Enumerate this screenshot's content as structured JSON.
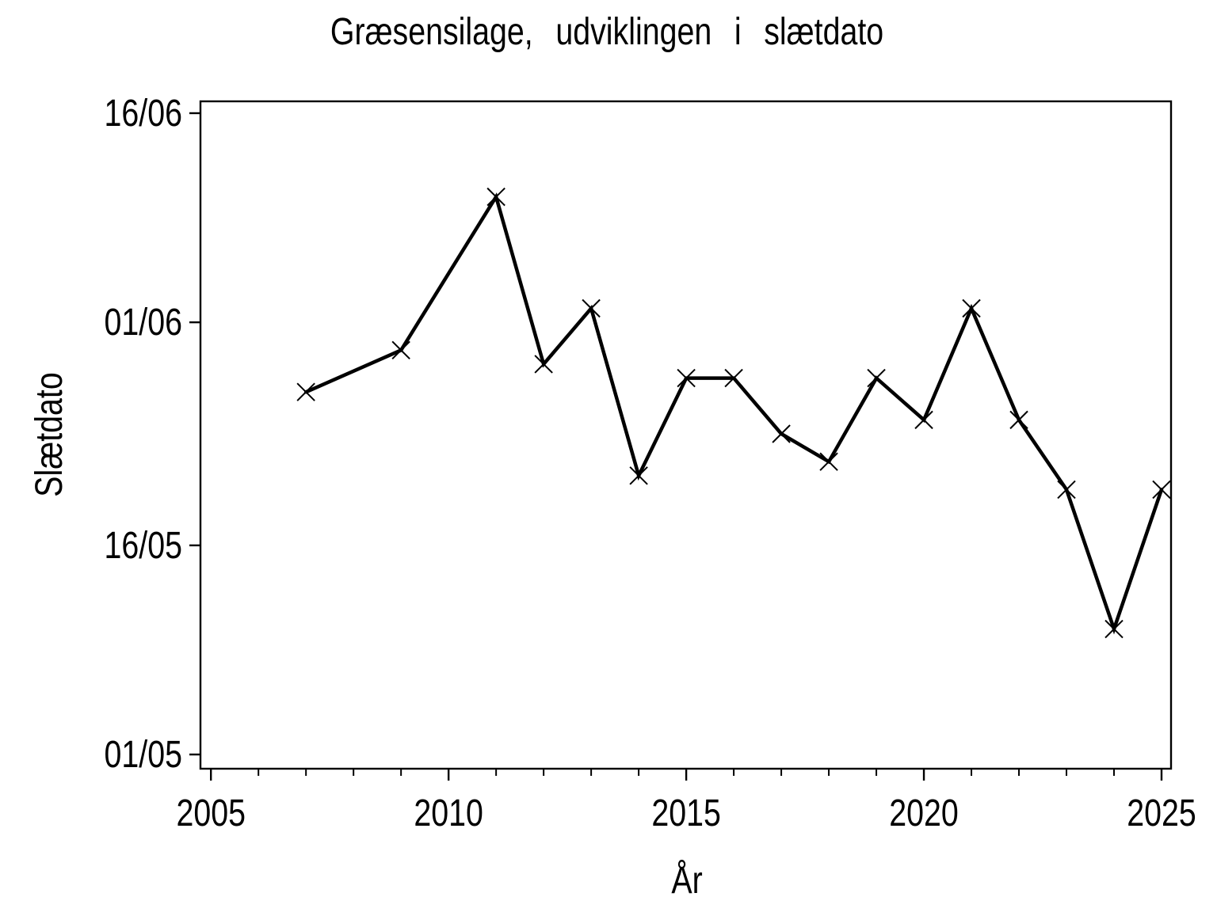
{
  "chart_data": {
    "type": "line",
    "title": "Græsensilage, udviklingen i slætdato",
    "xlabel": "År",
    "ylabel": "Slætdato",
    "legend": "none",
    "grid": false,
    "colors": {
      "foreground": "#000000",
      "background": "#ffffff"
    },
    "x_axis": {
      "lim": [
        2004.78,
        2025.2
      ],
      "major_ticks": [
        2005,
        2010,
        2015,
        2020,
        2025
      ],
      "major_tick_labels": [
        "2005",
        "2010",
        "2015",
        "2020",
        "2025"
      ],
      "minor_tick_years_start": 2005,
      "minor_tick_years_end": 2025,
      "minor_tick_step": 1
    },
    "y_axis": {
      "unit": "days after 01/05",
      "lim": [
        -1.02,
        46.85
      ],
      "ticks": [
        {
          "day": 0,
          "label": "01/05"
        },
        {
          "day": 15,
          "label": "16/05"
        },
        {
          "day": 31,
          "label": "01/06"
        },
        {
          "day": 46,
          "label": "16/06"
        }
      ]
    },
    "series": [
      {
        "name": "Slætdato",
        "marker": "x",
        "color": "#000000",
        "points": [
          {
            "year": 2007,
            "date": "27/05",
            "day": 26
          },
          {
            "year": 2009,
            "date": "30/05",
            "day": 29
          },
          {
            "year": 2011,
            "date": "10/06",
            "day": 40
          },
          {
            "year": 2012,
            "date": "29/05",
            "day": 28
          },
          {
            "year": 2013,
            "date": "02/06",
            "day": 32
          },
          {
            "year": 2014,
            "date": "21/05",
            "day": 20
          },
          {
            "year": 2015,
            "date": "28/05",
            "day": 27
          },
          {
            "year": 2016,
            "date": "28/05",
            "day": 27
          },
          {
            "year": 2017,
            "date": "24/05",
            "day": 23
          },
          {
            "year": 2018,
            "date": "22/05",
            "day": 21
          },
          {
            "year": 2019,
            "date": "28/05",
            "day": 27
          },
          {
            "year": 2020,
            "date": "25/05",
            "day": 24
          },
          {
            "year": 2021,
            "date": "02/06",
            "day": 32
          },
          {
            "year": 2022,
            "date": "25/05",
            "day": 24
          },
          {
            "year": 2023,
            "date": "20/05",
            "day": 19
          },
          {
            "year": 2024,
            "date": "10/05",
            "day": 9
          },
          {
            "year": 2025,
            "date": "20/05",
            "day": 19
          }
        ]
      }
    ]
  }
}
